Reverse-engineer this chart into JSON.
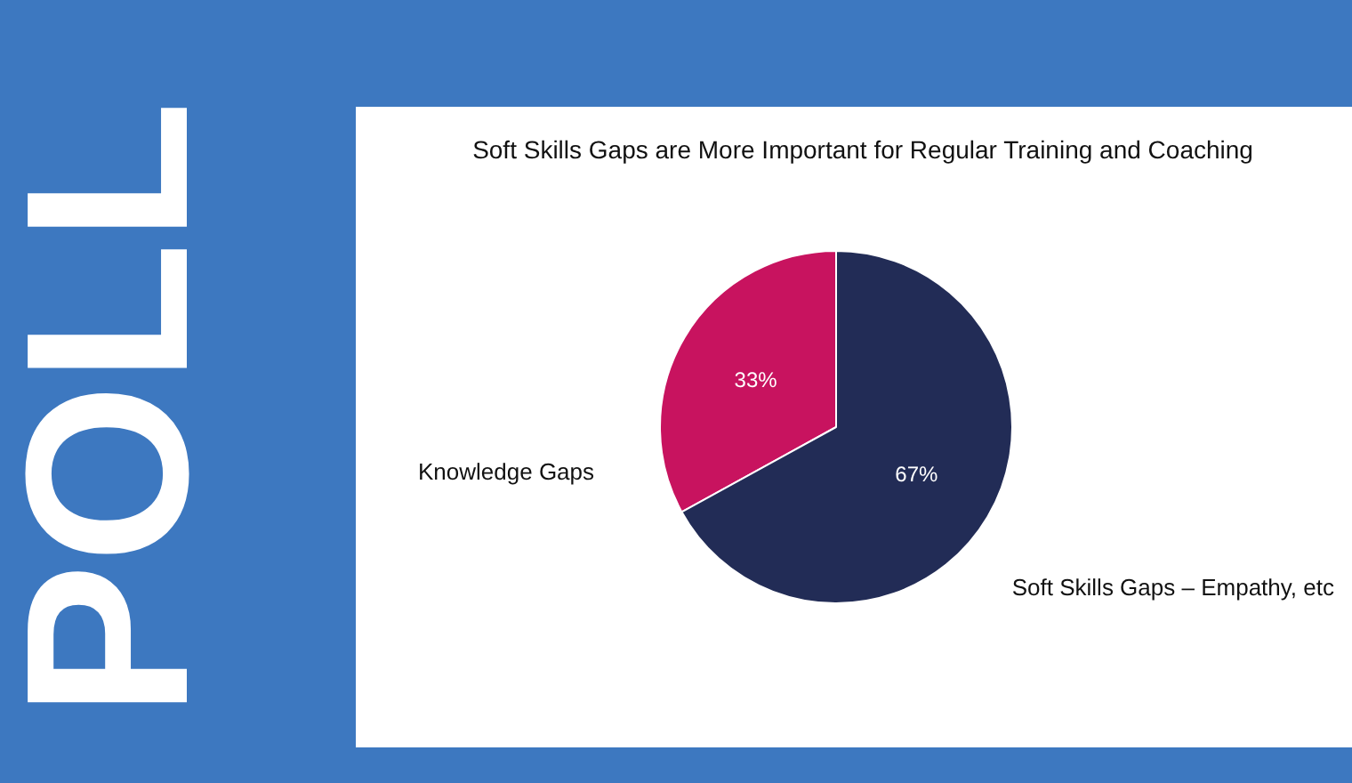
{
  "chart_data": {
    "type": "pie",
    "title": "Soft Skills Gaps are More Important for Regular Training and Coaching",
    "categories": [
      "Knowledge Gaps",
      "Soft Skills Gaps – Empathy, etc"
    ],
    "values": [
      33,
      67
    ],
    "colors": [
      "#c8135f",
      "#222c56"
    ],
    "value_labels": [
      "33%",
      "67%"
    ],
    "annotations": [
      "POLL"
    ]
  }
}
